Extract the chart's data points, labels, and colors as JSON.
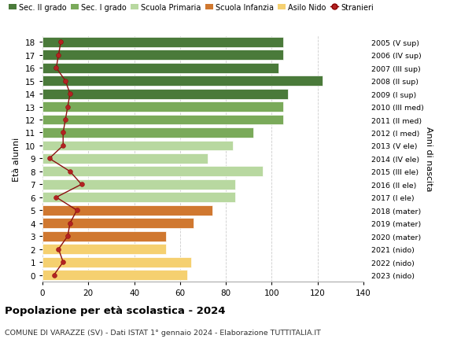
{
  "ages": [
    18,
    17,
    16,
    15,
    14,
    13,
    12,
    11,
    10,
    9,
    8,
    7,
    6,
    5,
    4,
    3,
    2,
    1,
    0
  ],
  "bar_values": [
    105,
    105,
    103,
    122,
    107,
    105,
    105,
    92,
    83,
    72,
    96,
    84,
    84,
    74,
    66,
    54,
    54,
    65,
    63
  ],
  "stranieri": [
    8,
    7,
    6,
    10,
    12,
    11,
    10,
    9,
    9,
    3,
    12,
    17,
    6,
    15,
    12,
    11,
    7,
    9,
    5
  ],
  "right_labels": [
    "2005 (V sup)",
    "2006 (IV sup)",
    "2007 (III sup)",
    "2008 (II sup)",
    "2009 (I sup)",
    "2010 (III med)",
    "2011 (II med)",
    "2012 (I med)",
    "2013 (V ele)",
    "2014 (IV ele)",
    "2015 (III ele)",
    "2016 (II ele)",
    "2017 (I ele)",
    "2018 (mater)",
    "2019 (mater)",
    "2020 (mater)",
    "2021 (nido)",
    "2022 (nido)",
    "2023 (nido)"
  ],
  "bar_colors": [
    "#4a7a3a",
    "#4a7a3a",
    "#4a7a3a",
    "#4a7a3a",
    "#4a7a3a",
    "#7aaa5a",
    "#7aaa5a",
    "#7aaa5a",
    "#b8d8a0",
    "#b8d8a0",
    "#b8d8a0",
    "#b8d8a0",
    "#b8d8a0",
    "#d07830",
    "#d07830",
    "#d07830",
    "#f5d070",
    "#f5d070",
    "#f5d070"
  ],
  "legend_labels": [
    "Sec. II grado",
    "Sec. I grado",
    "Scuola Primaria",
    "Scuola Infanzia",
    "Asilo Nido",
    "Stranieri"
  ],
  "legend_colors": [
    "#4a7a3a",
    "#7aaa5a",
    "#b8d8a0",
    "#d07830",
    "#f5d070",
    "#b22222"
  ],
  "title": "Popolazione per età scolastica - 2024",
  "subtitle": "COMUNE DI VARAZZE (SV) - Dati ISTAT 1° gennaio 2024 - Elaborazione TUTTITALIA.IT",
  "ylabel": "Età alunni",
  "right_ylabel": "Anni di nascita",
  "xlim": [
    0,
    140
  ],
  "xticks": [
    0,
    20,
    40,
    60,
    80,
    100,
    120,
    140
  ],
  "background_color": "#ffffff",
  "grid_color": "#cccccc"
}
